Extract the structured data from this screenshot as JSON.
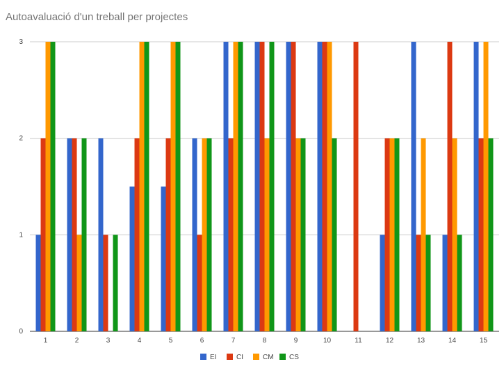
{
  "chart_data": {
    "type": "bar",
    "title": "Autoavaluació d'un treball per projectes",
    "xlabel": "",
    "ylabel": "",
    "ylim": [
      0,
      3
    ],
    "yticks": [
      "0",
      "1",
      "2",
      "3"
    ],
    "grid": true,
    "legend_position": "bottom",
    "categories": [
      "1",
      "2",
      "3",
      "4",
      "5",
      "6",
      "7",
      "8",
      "9",
      "10",
      "11",
      "12",
      "13",
      "14",
      "15"
    ],
    "series": [
      {
        "name": "EI",
        "color": "#3366cc",
        "values": [
          1,
          2,
          2,
          1.5,
          1.5,
          2,
          3,
          3,
          3,
          3,
          0,
          1,
          3,
          1,
          3
        ]
      },
      {
        "name": "CI",
        "color": "#dc3912",
        "values": [
          2,
          2,
          1,
          2,
          2,
          1,
          2,
          3,
          3,
          3,
          3,
          2,
          1,
          3,
          2
        ]
      },
      {
        "name": "CM",
        "color": "#ff9900",
        "values": [
          3,
          1,
          0,
          3,
          3,
          2,
          3,
          2,
          2,
          3,
          0,
          2,
          2,
          2,
          3
        ]
      },
      {
        "name": "CS",
        "color": "#109618",
        "values": [
          3,
          2,
          1,
          3,
          3,
          2,
          3,
          3,
          2,
          2,
          0,
          2,
          1,
          1,
          2
        ]
      }
    ]
  }
}
